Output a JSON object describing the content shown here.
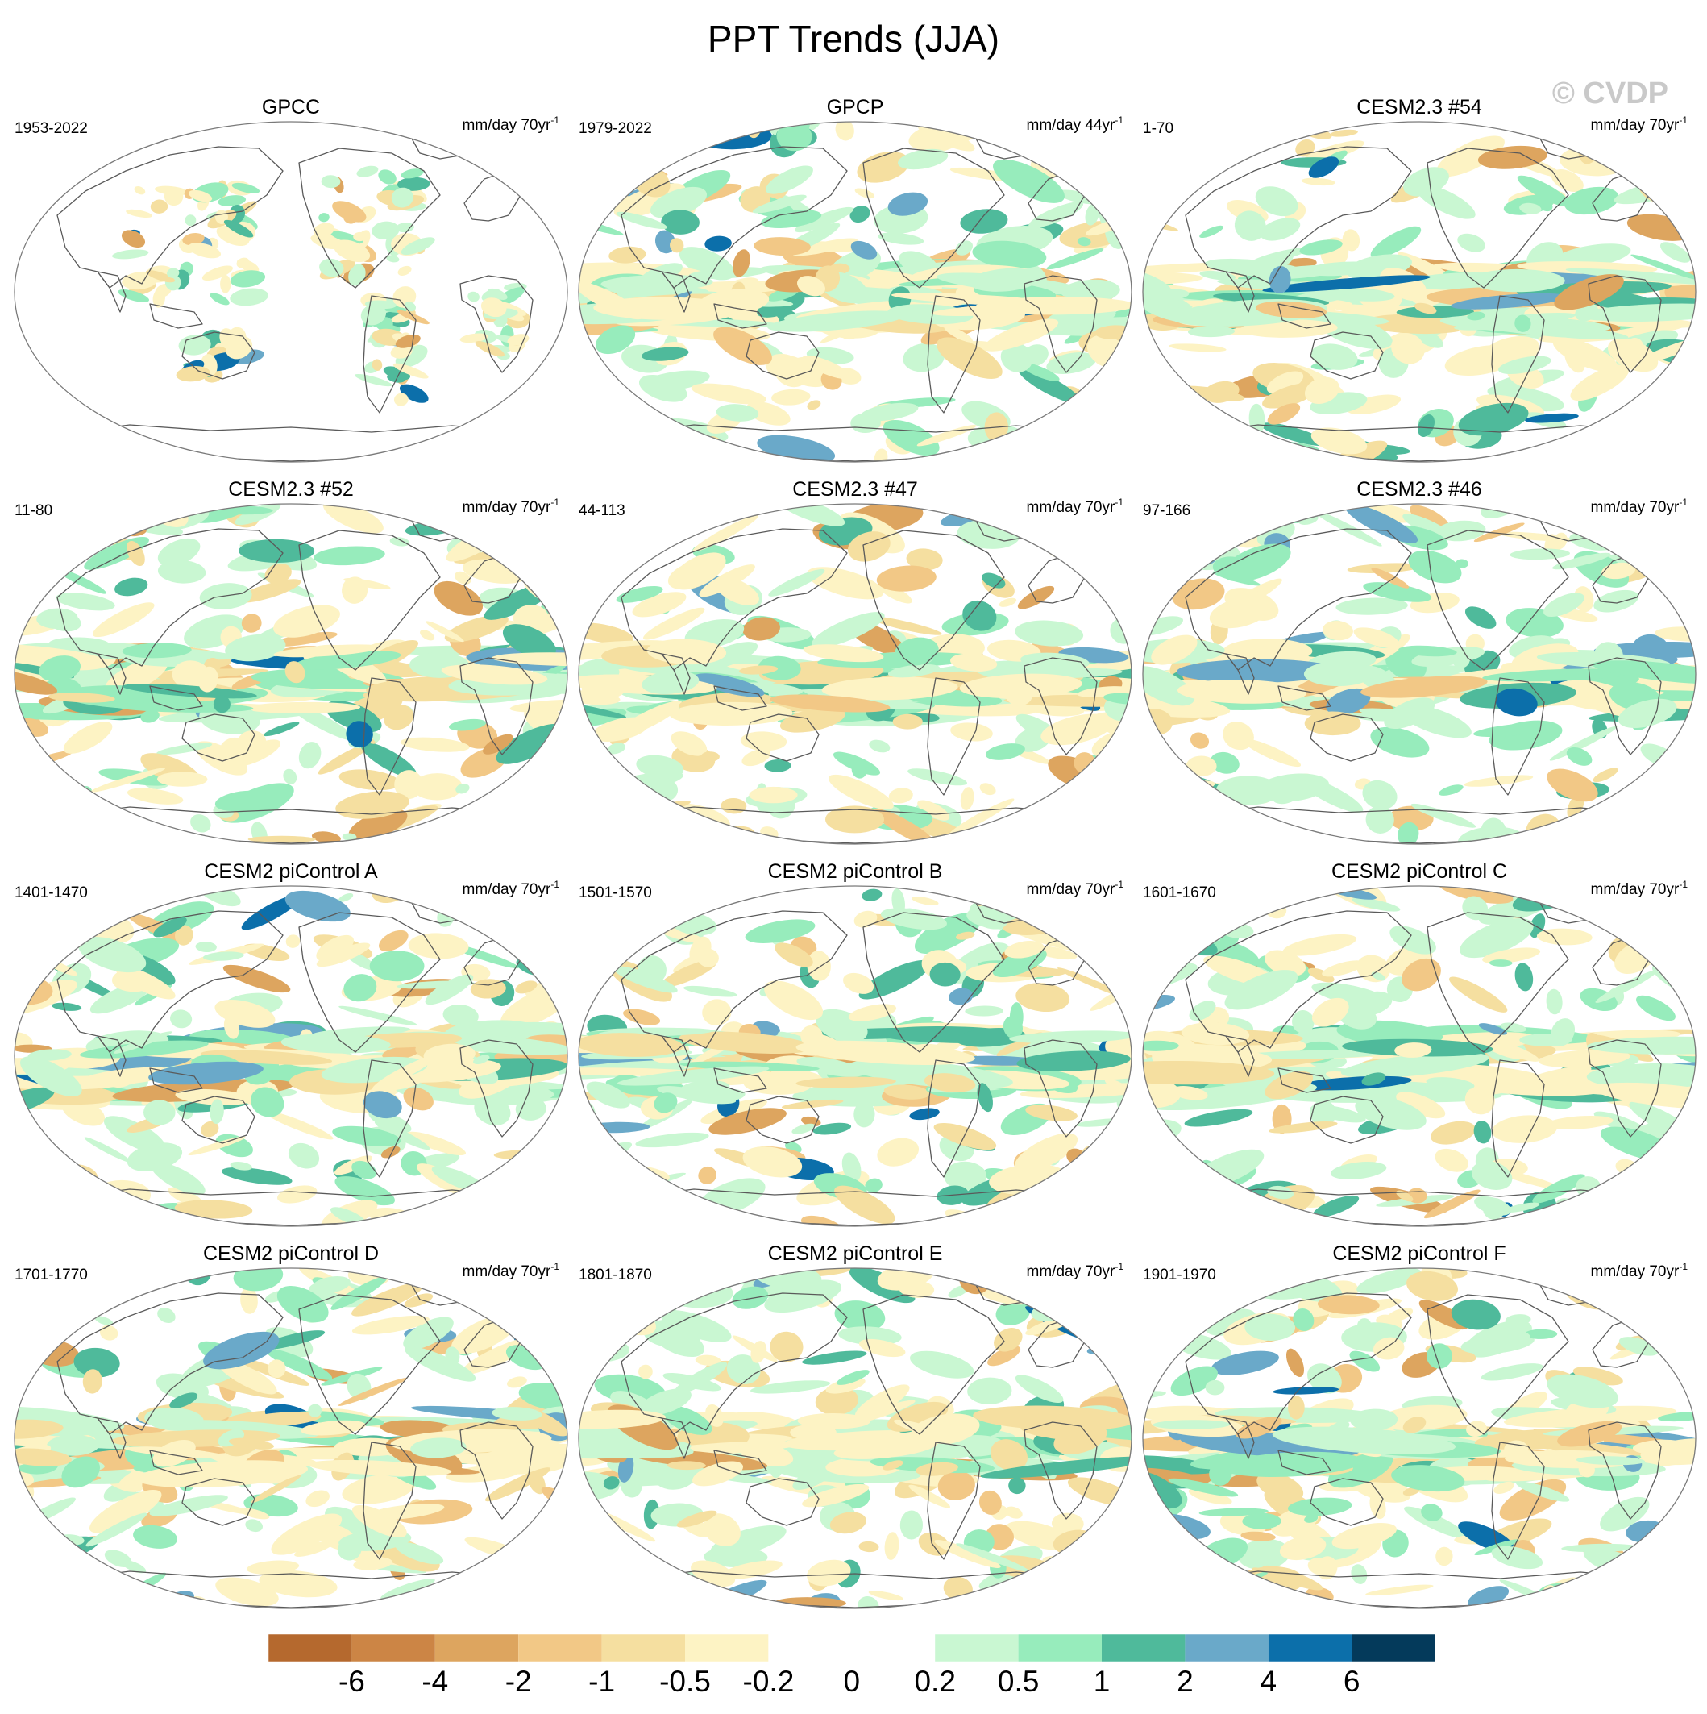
{
  "title": "PPT Trends (JJA)",
  "watermark": "© CVDP",
  "units_prefix": "mm/day",
  "panels": [
    {
      "name": "GPCC",
      "period": "1953-2022",
      "span": "70yr",
      "exp": "-1",
      "kind": "obs-land"
    },
    {
      "name": "GPCP",
      "period": "1979-2022",
      "span": "44yr",
      "exp": "-1",
      "kind": "obs-global"
    },
    {
      "name": "CESM2.3 #54",
      "period": "1-70",
      "span": "70yr",
      "exp": "-1",
      "kind": "model"
    },
    {
      "name": "CESM2.3 #52",
      "period": "11-80",
      "span": "70yr",
      "exp": "-1",
      "kind": "model"
    },
    {
      "name": "CESM2.3 #47",
      "period": "44-113",
      "span": "70yr",
      "exp": "-1",
      "kind": "model"
    },
    {
      "name": "CESM2.3 #46",
      "period": "97-166",
      "span": "70yr",
      "exp": "-1",
      "kind": "model"
    },
    {
      "name": "CESM2 piControl A",
      "period": "1401-1470",
      "span": "70yr",
      "exp": "-1",
      "kind": "model"
    },
    {
      "name": "CESM2 piControl B",
      "period": "1501-1570",
      "span": "70yr",
      "exp": "-1",
      "kind": "model"
    },
    {
      "name": "CESM2 piControl C",
      "period": "1601-1670",
      "span": "70yr",
      "exp": "-1",
      "kind": "model"
    },
    {
      "name": "CESM2 piControl D",
      "period": "1701-1770",
      "span": "70yr",
      "exp": "-1",
      "kind": "model"
    },
    {
      "name": "CESM2 piControl E",
      "period": "1801-1870",
      "span": "70yr",
      "exp": "-1",
      "kind": "model"
    },
    {
      "name": "CESM2 piControl F",
      "period": "1901-1970",
      "span": "70yr",
      "exp": "-1",
      "kind": "model"
    }
  ],
  "colorbar": {
    "colors": [
      "#b5692e",
      "#cc8545",
      "#dda55f",
      "#f2c886",
      "#f5dfa0",
      "#fdf3c4",
      "#ffffff",
      "#ffffff",
      "#c9f7d2",
      "#97ecbc",
      "#4fba9b",
      "#6aa9c9",
      "#0c6faa",
      "#043a5b"
    ],
    "labels": [
      "-6",
      "-4",
      "-2",
      "-1",
      "-0.5",
      "-0.2",
      "0",
      "0.2",
      "0.5",
      "1",
      "2",
      "4",
      "6"
    ]
  }
}
